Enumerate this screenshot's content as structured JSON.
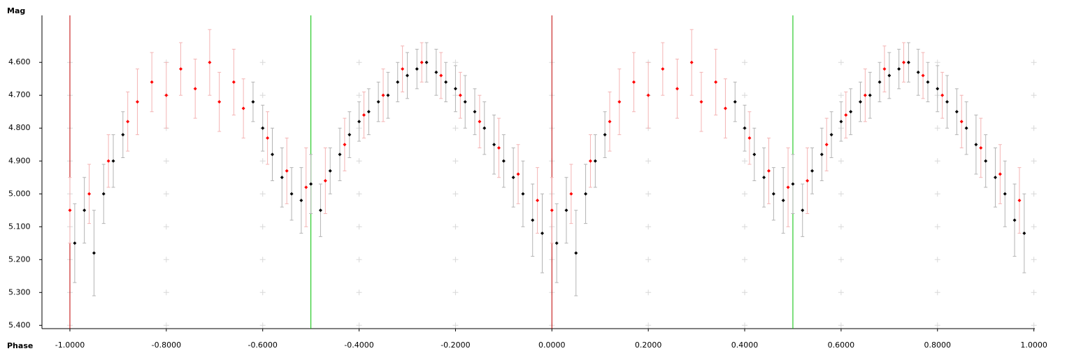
{
  "chart_data": {
    "type": "scatter",
    "y_label": "Mag",
    "x_label": "Phase",
    "xlim": [
      -1.058,
      1.002
    ],
    "ylim": [
      4.457,
      5.41
    ],
    "y_reversed": true,
    "grid": "crosses",
    "xticks": [
      {
        "value": -1,
        "label": "-1.0000"
      },
      {
        "value": -0.8,
        "label": "-0.8000"
      },
      {
        "value": -0.6,
        "label": "-0.6000"
      },
      {
        "value": -0.4,
        "label": "-0.4000"
      },
      {
        "value": -0.2,
        "label": "-0.2000"
      },
      {
        "value": 0,
        "label": "0.0000"
      },
      {
        "value": 0.2,
        "label": "0.2000"
      },
      {
        "value": 0.4,
        "label": "0.4000"
      },
      {
        "value": 0.6,
        "label": "0.6000"
      },
      {
        "value": 0.8,
        "label": "0.8000"
      },
      {
        "value": 1,
        "label": "1.0000"
      }
    ],
    "yticks": [
      {
        "value": 4.6,
        "label": "4.600"
      },
      {
        "value": 4.7,
        "label": "4.700"
      },
      {
        "value": 4.8,
        "label": "4.800"
      },
      {
        "value": 4.9,
        "label": "4.900"
      },
      {
        "value": 5.0,
        "label": "5.000"
      },
      {
        "value": 5.1,
        "label": "5.100"
      },
      {
        "value": 5.2,
        "label": "5.200"
      },
      {
        "value": 5.3,
        "label": "5.300"
      },
      {
        "value": 5.4,
        "label": "5.400"
      }
    ],
    "vlines": [
      {
        "x": -1,
        "color": "#c00000"
      },
      {
        "x": -0.5,
        "color": "#00c000"
      },
      {
        "x": 0,
        "color": "#c00000"
      },
      {
        "x": 0.5,
        "color": "#00c000"
      }
    ],
    "series": [
      {
        "color": "#000000",
        "error_color": "#b4b4b4",
        "x": [
          -0.99,
          -0.97,
          -0.95,
          -0.93,
          -0.91,
          -0.89,
          -0.62,
          -0.6,
          -0.58,
          -0.56,
          -0.54,
          -0.52,
          -0.5,
          -0.48,
          -0.46,
          -0.44,
          -0.42,
          -0.4,
          -0.38,
          -0.36,
          -0.34,
          -0.32,
          -0.3,
          -0.28,
          -0.26,
          -0.24,
          -0.22,
          -0.2,
          -0.18,
          -0.16,
          -0.14,
          -0.12,
          -0.1,
          -0.08,
          -0.06,
          -0.04,
          -0.02,
          0.01,
          0.03,
          0.05,
          0.07,
          0.09,
          0.11,
          0.38,
          0.4,
          0.42,
          0.44,
          0.46,
          0.48,
          0.5,
          0.52,
          0.54,
          0.56,
          0.58,
          0.6,
          0.62,
          0.64,
          0.66,
          0.68,
          0.7,
          0.72,
          0.74,
          0.76,
          0.78,
          0.8,
          0.82,
          0.84,
          0.86,
          0.88,
          0.9,
          0.92,
          0.94,
          0.96,
          0.98
        ],
        "values": [
          5.15,
          5.05,
          5.18,
          5.0,
          4.9,
          4.82,
          4.72,
          4.8,
          4.88,
          4.95,
          5.0,
          5.02,
          4.97,
          5.05,
          4.93,
          4.88,
          4.82,
          4.78,
          4.75,
          4.72,
          4.7,
          4.66,
          4.64,
          4.62,
          4.6,
          4.63,
          4.66,
          4.68,
          4.72,
          4.75,
          4.8,
          4.85,
          4.9,
          4.95,
          5.0,
          5.08,
          5.12,
          5.15,
          5.05,
          5.18,
          5.0,
          4.9,
          4.82,
          4.72,
          4.8,
          4.88,
          4.95,
          5.0,
          5.02,
          4.97,
          5.05,
          4.93,
          4.88,
          4.82,
          4.78,
          4.75,
          4.72,
          4.7,
          4.66,
          4.64,
          4.62,
          4.6,
          4.63,
          4.66,
          4.68,
          4.72,
          4.75,
          4.8,
          4.85,
          4.9,
          4.95,
          5.0,
          5.08,
          5.12
        ],
        "errors": [
          0.12,
          0.1,
          0.13,
          0.09,
          0.08,
          0.07,
          0.06,
          0.07,
          0.08,
          0.09,
          0.08,
          0.1,
          0.09,
          0.08,
          0.07,
          0.08,
          0.07,
          0.06,
          0.07,
          0.06,
          0.07,
          0.06,
          0.07,
          0.06,
          0.06,
          0.07,
          0.06,
          0.07,
          0.08,
          0.07,
          0.08,
          0.09,
          0.08,
          0.09,
          0.1,
          0.11,
          0.12,
          0.12,
          0.1,
          0.13,
          0.09,
          0.08,
          0.07,
          0.06,
          0.07,
          0.08,
          0.09,
          0.08,
          0.1,
          0.09,
          0.08,
          0.07,
          0.08,
          0.07,
          0.06,
          0.07,
          0.06,
          0.07,
          0.06,
          0.07,
          0.06,
          0.06,
          0.07,
          0.06,
          0.07,
          0.08,
          0.07,
          0.08,
          0.09,
          0.08,
          0.09,
          0.1,
          0.11,
          0.12
        ]
      },
      {
        "color": "#ff0000",
        "error_color": "#f4b4b4",
        "x": [
          -1.0,
          -0.96,
          -0.92,
          -0.88,
          -0.86,
          -0.83,
          -0.8,
          -0.77,
          -0.74,
          -0.71,
          -0.69,
          -0.66,
          -0.64,
          -0.59,
          -0.55,
          -0.51,
          -0.47,
          -0.43,
          -0.39,
          -0.35,
          -0.31,
          -0.27,
          -0.23,
          -0.19,
          -0.15,
          -0.11,
          -0.07,
          -0.03,
          0.0,
          0.04,
          0.08,
          0.12,
          0.14,
          0.17,
          0.2,
          0.23,
          0.26,
          0.29,
          0.31,
          0.34,
          0.36,
          0.41,
          0.45,
          0.49,
          0.53,
          0.57,
          0.61,
          0.65,
          0.69,
          0.73,
          0.77,
          0.81,
          0.85,
          0.89,
          0.93,
          0.97
        ],
        "values": [
          5.05,
          5.0,
          4.9,
          4.78,
          4.72,
          4.66,
          4.7,
          4.62,
          4.68,
          4.6,
          4.72,
          4.66,
          4.74,
          4.83,
          4.93,
          4.98,
          4.96,
          4.85,
          4.76,
          4.7,
          4.62,
          4.6,
          4.64,
          4.7,
          4.78,
          4.86,
          4.94,
          5.02,
          5.05,
          5.0,
          4.9,
          4.78,
          4.72,
          4.66,
          4.7,
          4.62,
          4.68,
          4.6,
          4.72,
          4.66,
          4.74,
          4.83,
          4.93,
          4.98,
          4.96,
          4.85,
          4.76,
          4.7,
          4.62,
          4.6,
          4.64,
          4.7,
          4.78,
          4.86,
          4.94,
          5.02
        ],
        "errors": [
          0.1,
          0.09,
          0.08,
          0.09,
          0.1,
          0.09,
          0.1,
          0.08,
          0.09,
          0.1,
          0.09,
          0.1,
          0.09,
          0.08,
          0.1,
          0.12,
          0.1,
          0.08,
          0.07,
          0.08,
          0.07,
          0.06,
          0.07,
          0.07,
          0.08,
          0.09,
          0.09,
          0.1,
          0.1,
          0.09,
          0.08,
          0.09,
          0.1,
          0.09,
          0.1,
          0.08,
          0.09,
          0.1,
          0.09,
          0.1,
          0.09,
          0.08,
          0.1,
          0.12,
          0.1,
          0.08,
          0.07,
          0.08,
          0.07,
          0.06,
          0.07,
          0.07,
          0.08,
          0.09,
          0.09,
          0.1
        ]
      }
    ]
  }
}
